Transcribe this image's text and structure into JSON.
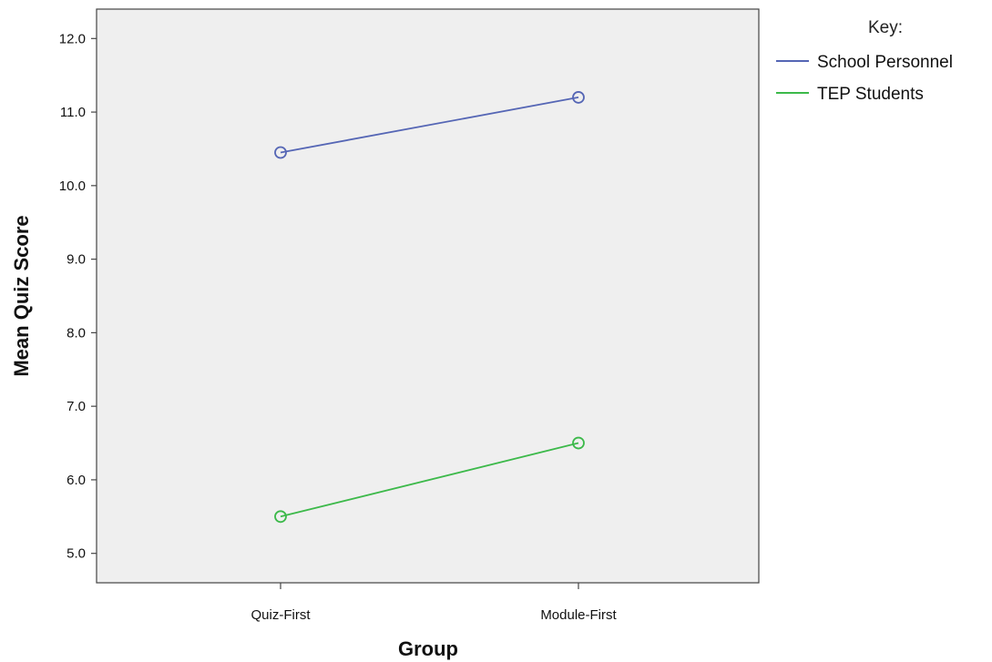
{
  "chart_data": {
    "type": "line",
    "title": "",
    "xlabel": "Group",
    "ylabel": "Mean Quiz Score",
    "categories": [
      "Quiz-First",
      "Module-First"
    ],
    "ylim": [
      4.6,
      12.4
    ],
    "yticks": [
      "5.0",
      "6.0",
      "7.0",
      "8.0",
      "9.0",
      "10.0",
      "11.0",
      "12.0"
    ],
    "grid": false,
    "legend": {
      "title": "Key:",
      "position": "right"
    },
    "series": [
      {
        "name": "School Personnel",
        "values": [
          10.45,
          11.2
        ],
        "color": "#5566b5"
      },
      {
        "name": "TEP Students",
        "values": [
          5.5,
          6.5
        ],
        "color": "#3cb94a"
      }
    ]
  },
  "plot_background": "#efefef"
}
